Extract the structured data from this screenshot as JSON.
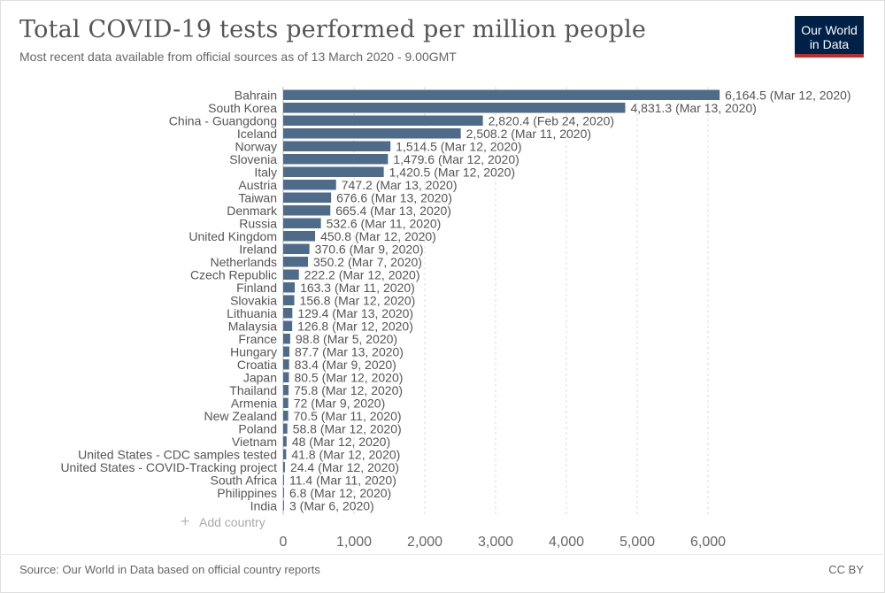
{
  "header": {
    "title": "Total COVID-19 tests performed per million people",
    "subtitle": "Most recent data available from official sources as of 13 March 2020 - 9.00GMT"
  },
  "logo": {
    "line1": "Our World",
    "line2": "in Data"
  },
  "add_country": {
    "icon": "plus-icon",
    "label": "Add country"
  },
  "footer": {
    "source": "Source: Our World in Data based on official country reports",
    "license": "CC BY"
  },
  "colors": {
    "bar": "#4f6b8a",
    "grid": "#dddddd",
    "text": "#555555"
  },
  "chart_data": {
    "type": "bar",
    "orientation": "horizontal",
    "title": "Total COVID-19 tests performed per million people",
    "xlabel": "",
    "ylabel": "",
    "xlim": [
      0,
      6500
    ],
    "xticks": [
      0,
      1000,
      2000,
      3000,
      4000,
      5000,
      6000
    ],
    "xtick_labels": [
      "0",
      "1,000",
      "2,000",
      "3,000",
      "4,000",
      "5,000",
      "6,000"
    ],
    "grid": "vertical dashed",
    "categories": [
      "Bahrain",
      "South Korea",
      "China - Guangdong",
      "Iceland",
      "Norway",
      "Slovenia",
      "Italy",
      "Austria",
      "Taiwan",
      "Denmark",
      "Russia",
      "United Kingdom",
      "Ireland",
      "Netherlands",
      "Czech Republic",
      "Finland",
      "Slovakia",
      "Lithuania",
      "Malaysia",
      "France",
      "Hungary",
      "Croatia",
      "Japan",
      "Thailand",
      "Armenia",
      "New Zealand",
      "Poland",
      "Vietnam",
      "United States - CDC samples tested",
      "United States - COVID-Tracking project",
      "South Africa",
      "Philippines",
      "India"
    ],
    "values": [
      6164.5,
      4831.3,
      2820.4,
      2508.2,
      1514.5,
      1479.6,
      1420.5,
      747.2,
      676.6,
      665.4,
      532.6,
      450.8,
      370.6,
      350.2,
      222.2,
      163.3,
      156.8,
      129.4,
      126.8,
      98.8,
      87.7,
      83.4,
      80.5,
      75.8,
      72,
      70.5,
      58.8,
      48,
      41.8,
      24.4,
      11.4,
      6.8,
      3
    ],
    "value_labels": [
      "6,164.5 (Mar 12, 2020)",
      "4,831.3 (Mar 13, 2020)",
      "2,820.4 (Feb 24, 2020)",
      "2,508.2 (Mar 11, 2020)",
      "1,514.5 (Mar 12, 2020)",
      "1,479.6 (Mar 12, 2020)",
      "1,420.5 (Mar 12, 2020)",
      "747.2 (Mar 13, 2020)",
      "676.6 (Mar 13, 2020)",
      "665.4 (Mar 13, 2020)",
      "532.6 (Mar 11, 2020)",
      "450.8 (Mar 12, 2020)",
      "370.6 (Mar 9, 2020)",
      "350.2 (Mar 7, 2020)",
      "222.2 (Mar 12, 2020)",
      "163.3 (Mar 11, 2020)",
      "156.8 (Mar 12, 2020)",
      "129.4 (Mar 13, 2020)",
      "126.8 (Mar 12, 2020)",
      "98.8 (Mar 5, 2020)",
      "87.7 (Mar 13, 2020)",
      "83.4 (Mar 9, 2020)",
      "80.5 (Mar 12, 2020)",
      "75.8 (Mar 12, 2020)",
      "72 (Mar 9, 2020)",
      "70.5 (Mar 11, 2020)",
      "58.8 (Mar 12, 2020)",
      "48 (Mar 12, 2020)",
      "41.8 (Mar 12, 2020)",
      "24.4 (Mar 12, 2020)",
      "11.4 (Mar 11, 2020)",
      "6.8 (Mar 12, 2020)",
      "3 (Mar 6, 2020)"
    ]
  }
}
